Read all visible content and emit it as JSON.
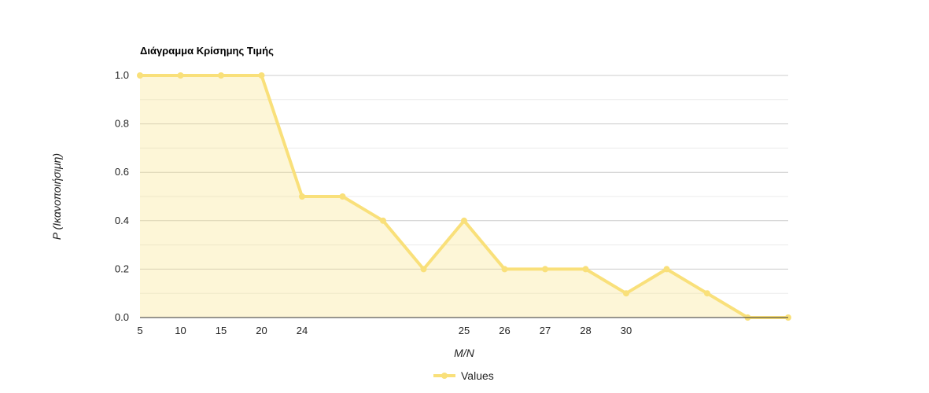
{
  "chart_data": {
    "type": "area",
    "title": "Διάγραμμα Κρίσημης Τιμής",
    "xlabel": "M/N",
    "ylabel": "P (Ικανοποιήσιμη)",
    "ylim": [
      0,
      1
    ],
    "y_ticks": [
      "0.0",
      "0.2",
      "0.4",
      "0.6",
      "0.8",
      "1.0"
    ],
    "categories": [
      "5",
      "10",
      "15",
      "20",
      "24",
      "",
      "",
      "",
      "25",
      "26",
      "27",
      "28",
      "30",
      "",
      "",
      "",
      ""
    ],
    "series": [
      {
        "name": "Values",
        "color": "#f9e07a",
        "values": [
          1.0,
          1.0,
          1.0,
          1.0,
          0.5,
          0.5,
          0.4,
          0.2,
          0.4,
          0.2,
          0.2,
          0.2,
          0.1,
          0.2,
          0.1,
          0.0,
          0.0
        ]
      }
    ],
    "grid": true,
    "legend": "bottom"
  }
}
